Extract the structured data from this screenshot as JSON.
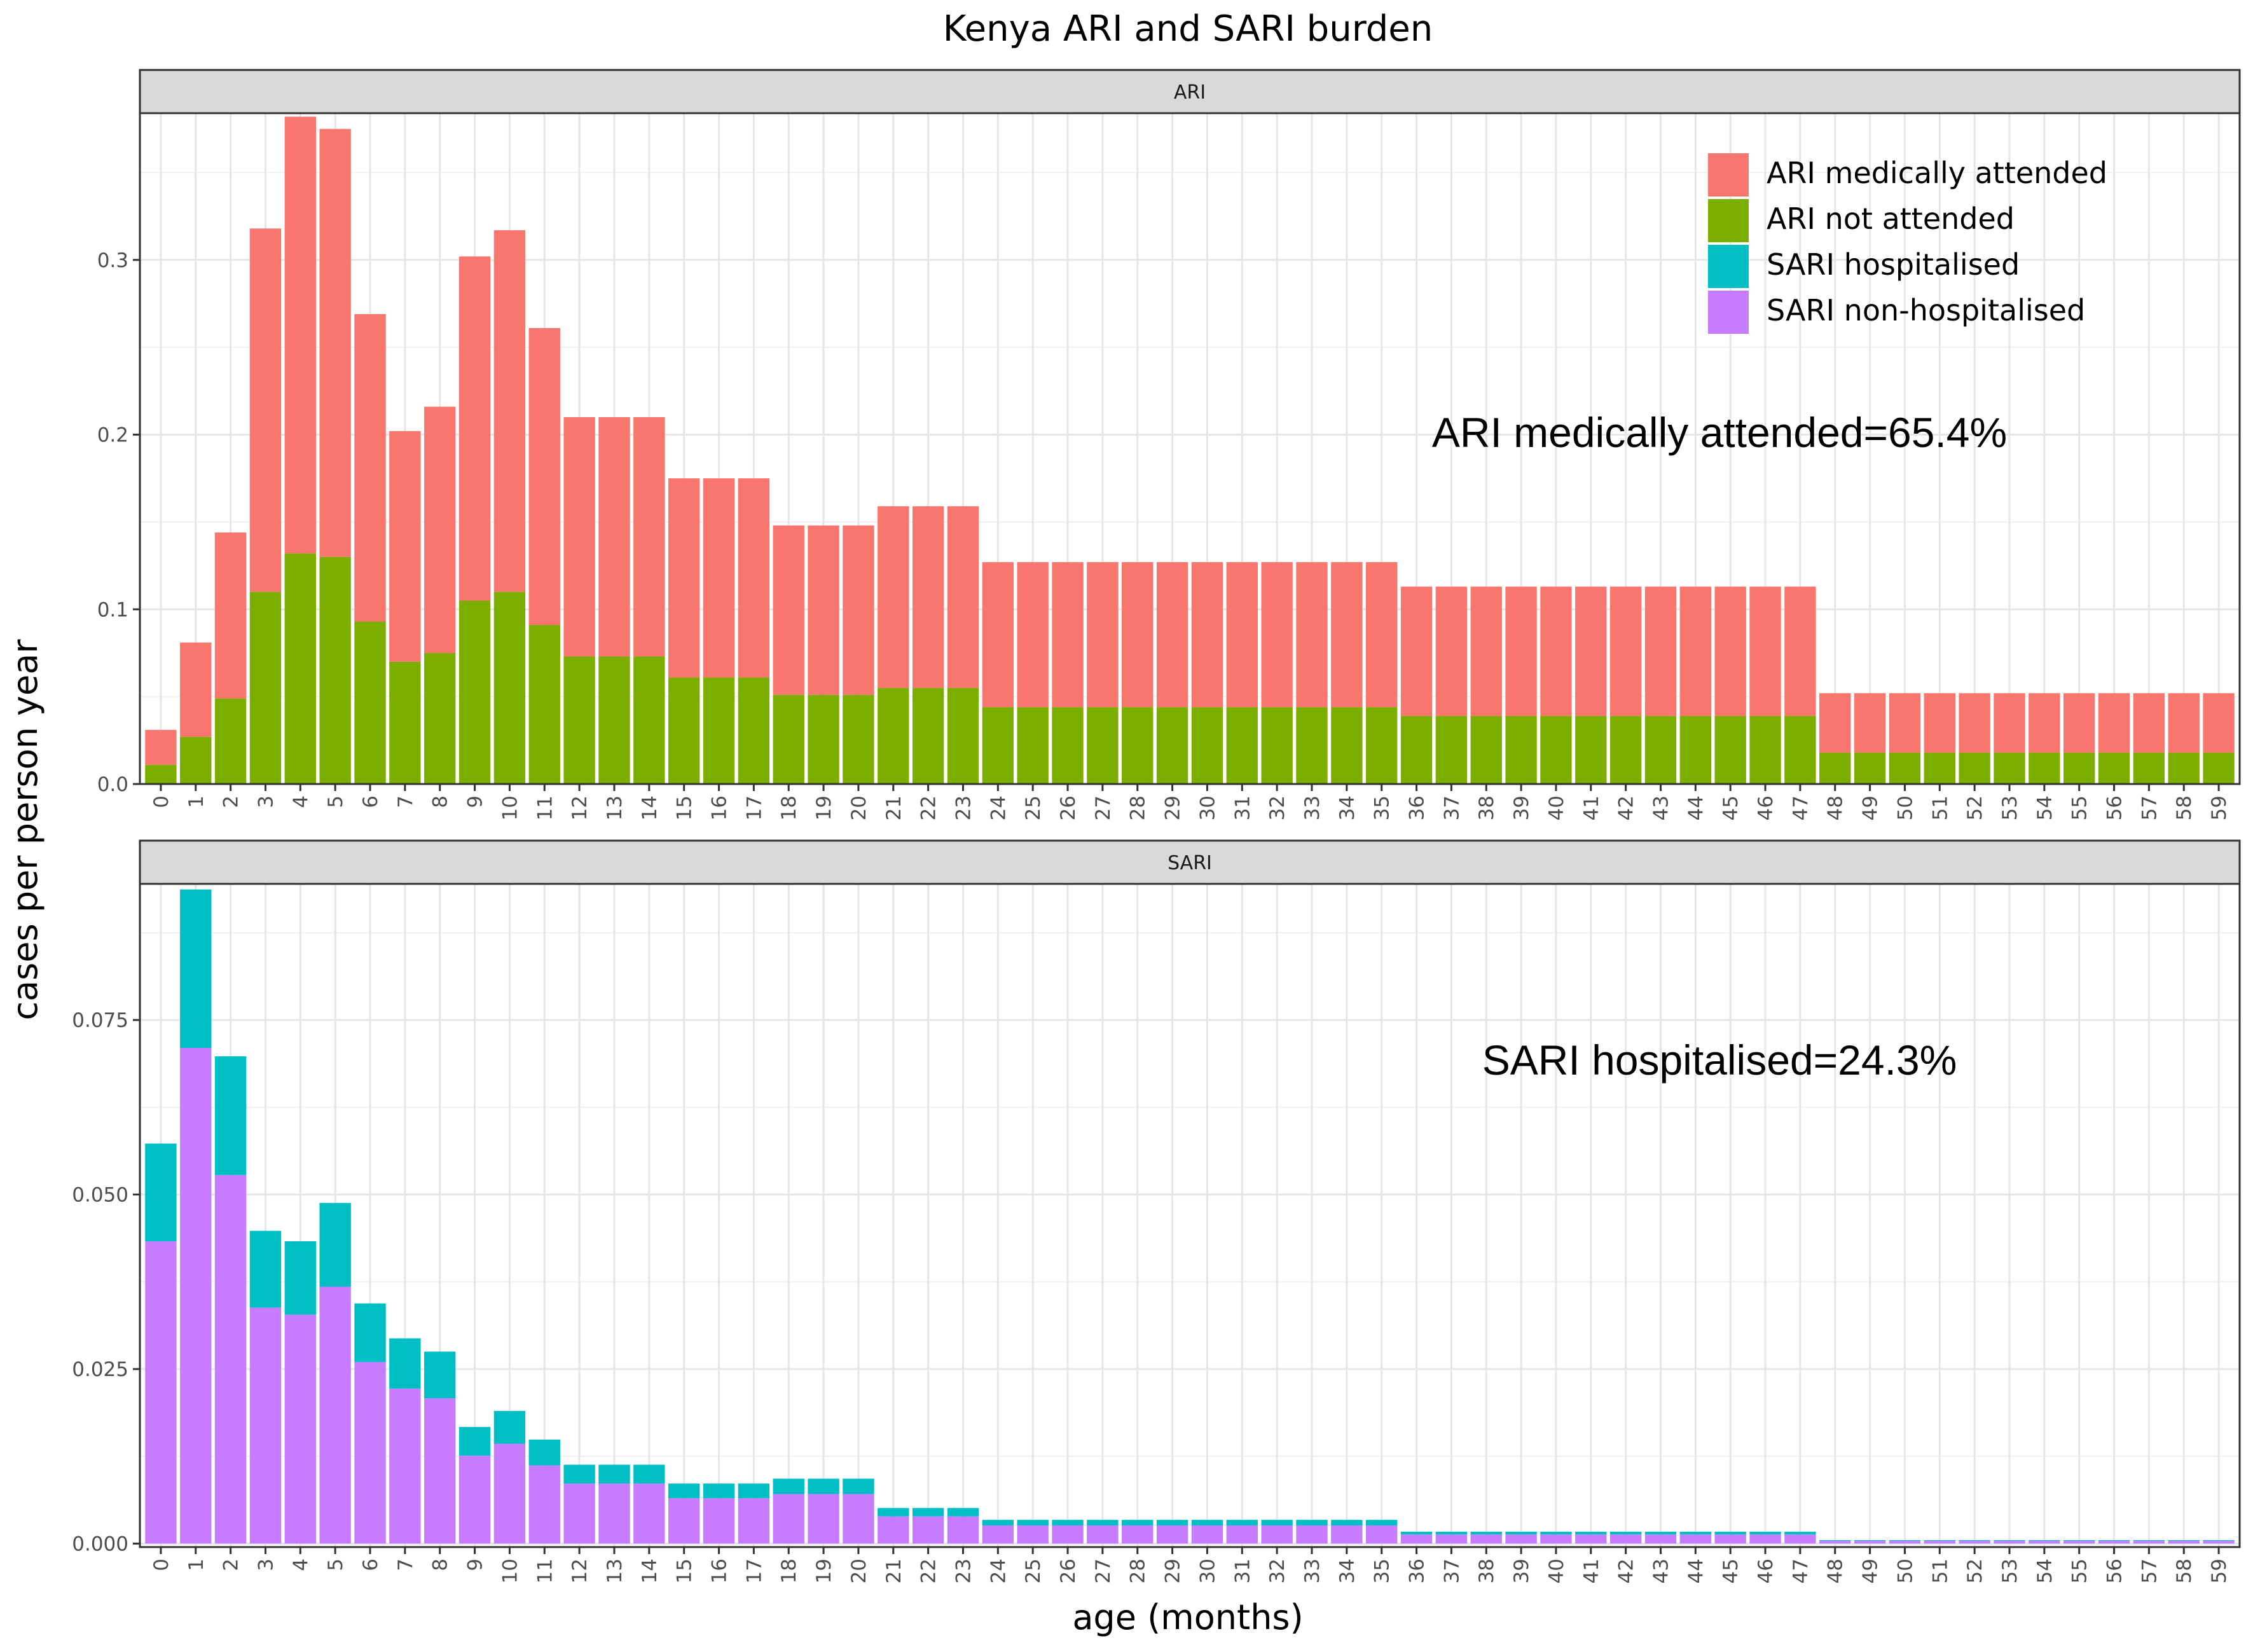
{
  "title": "Kenya ARI and SARI burden",
  "ylabel": "cases per person year",
  "xlabel": "age (months)",
  "legend": {
    "position": "top-right (inside ARI panel)",
    "entries": [
      {
        "label": "ARI medically attended",
        "color": "#F8766D"
      },
      {
        "label": "ARI not attended",
        "color": "#7CAE00"
      },
      {
        "label": "SARI hospitalised",
        "color": "#00BFC4"
      },
      {
        "label": "SARI non-hospitalised",
        "color": "#C77CFF"
      }
    ]
  },
  "chart_data": [
    {
      "type": "bar",
      "stacked": true,
      "panel": "ARI",
      "annotation": "ARI medically attended=65.4%",
      "grid": true,
      "x": [
        0,
        1,
        2,
        3,
        4,
        5,
        6,
        7,
        8,
        9,
        10,
        11,
        12,
        13,
        14,
        15,
        16,
        17,
        18,
        19,
        20,
        21,
        22,
        23,
        24,
        25,
        26,
        27,
        28,
        29,
        30,
        31,
        32,
        33,
        34,
        35,
        36,
        37,
        38,
        39,
        40,
        41,
        42,
        43,
        44,
        45,
        46,
        47,
        48,
        49,
        50,
        51,
        52,
        53,
        54,
        55,
        56,
        57,
        58,
        59
      ],
      "ylim": [
        0,
        0.384
      ],
      "yticks": [
        0.0,
        0.1,
        0.2,
        0.3
      ],
      "ytick_labels": [
        "0.0",
        "0.1",
        "0.2",
        "0.3"
      ],
      "series": [
        {
          "name": "ARI not attended",
          "color": "#7CAE00",
          "values": [
            0.011,
            0.027,
            0.049,
            0.11,
            0.132,
            0.13,
            0.093,
            0.07,
            0.075,
            0.105,
            0.11,
            0.091,
            0.073,
            0.073,
            0.073,
            0.061,
            0.061,
            0.061,
            0.051,
            0.051,
            0.051,
            0.055,
            0.055,
            0.055,
            0.044,
            0.044,
            0.044,
            0.044,
            0.044,
            0.044,
            0.044,
            0.044,
            0.044,
            0.044,
            0.044,
            0.044,
            0.039,
            0.039,
            0.039,
            0.039,
            0.039,
            0.039,
            0.039,
            0.039,
            0.039,
            0.039,
            0.039,
            0.039,
            0.018,
            0.018,
            0.018,
            0.018,
            0.018,
            0.018,
            0.018,
            0.018,
            0.018,
            0.018,
            0.018,
            0.018
          ]
        },
        {
          "name": "ARI medically attended",
          "color": "#F8766D",
          "values": [
            0.02,
            0.054,
            0.095,
            0.208,
            0.25,
            0.245,
            0.176,
            0.132,
            0.141,
            0.197,
            0.207,
            0.17,
            0.137,
            0.137,
            0.137,
            0.114,
            0.114,
            0.114,
            0.097,
            0.097,
            0.097,
            0.104,
            0.104,
            0.104,
            0.083,
            0.083,
            0.083,
            0.083,
            0.083,
            0.083,
            0.083,
            0.083,
            0.083,
            0.083,
            0.083,
            0.083,
            0.074,
            0.074,
            0.074,
            0.074,
            0.074,
            0.074,
            0.074,
            0.074,
            0.074,
            0.074,
            0.074,
            0.074,
            0.034,
            0.034,
            0.034,
            0.034,
            0.034,
            0.034,
            0.034,
            0.034,
            0.034,
            0.034,
            0.034,
            0.034
          ]
        }
      ]
    },
    {
      "type": "bar",
      "stacked": true,
      "panel": "SARI",
      "annotation": "SARI hospitalised=24.3%",
      "grid": true,
      "x": [
        0,
        1,
        2,
        3,
        4,
        5,
        6,
        7,
        8,
        9,
        10,
        11,
        12,
        13,
        14,
        15,
        16,
        17,
        18,
        19,
        20,
        21,
        22,
        23,
        24,
        25,
        26,
        27,
        28,
        29,
        30,
        31,
        32,
        33,
        34,
        35,
        36,
        37,
        38,
        39,
        40,
        41,
        42,
        43,
        44,
        45,
        46,
        47,
        48,
        49,
        50,
        51,
        52,
        53,
        54,
        55,
        56,
        57,
        58,
        59
      ],
      "ylim": [
        -0.0005,
        0.0945
      ],
      "yticks": [
        0.0,
        0.025,
        0.05,
        0.075
      ],
      "ytick_labels": [
        "0.000",
        "0.025",
        "0.050",
        "0.075"
      ],
      "series": [
        {
          "name": "SARI non-hospitalised",
          "color": "#C77CFF",
          "values": [
            0.0433,
            0.071,
            0.0528,
            0.0338,
            0.0328,
            0.0368,
            0.026,
            0.0222,
            0.0208,
            0.0126,
            0.0143,
            0.0112,
            0.0086,
            0.0086,
            0.0086,
            0.0065,
            0.0065,
            0.0065,
            0.0071,
            0.0071,
            0.0071,
            0.0039,
            0.0039,
            0.0039,
            0.0026,
            0.0026,
            0.0026,
            0.0026,
            0.0026,
            0.0026,
            0.0026,
            0.0026,
            0.0026,
            0.0026,
            0.0026,
            0.0026,
            0.0013,
            0.0013,
            0.0013,
            0.0013,
            0.0013,
            0.0013,
            0.0013,
            0.0013,
            0.0013,
            0.0013,
            0.0013,
            0.0013,
            0.0004,
            0.0004,
            0.0004,
            0.0004,
            0.0004,
            0.0004,
            0.0004,
            0.0004,
            0.0004,
            0.0004,
            0.0004,
            0.0004
          ]
        },
        {
          "name": "SARI hospitalised",
          "color": "#00BFC4",
          "values": [
            0.014,
            0.0227,
            0.017,
            0.011,
            0.0105,
            0.012,
            0.0084,
            0.0072,
            0.0067,
            0.0041,
            0.0047,
            0.0037,
            0.0027,
            0.0027,
            0.0027,
            0.0021,
            0.0021,
            0.0021,
            0.0022,
            0.0022,
            0.0022,
            0.0012,
            0.0012,
            0.0012,
            0.0008,
            0.0008,
            0.0008,
            0.0008,
            0.0008,
            0.0008,
            0.0008,
            0.0008,
            0.0008,
            0.0008,
            0.0008,
            0.0008,
            0.0004,
            0.0004,
            0.0004,
            0.0004,
            0.0004,
            0.0004,
            0.0004,
            0.0004,
            0.0004,
            0.0004,
            0.0004,
            0.0004,
            0.0001,
            0.0001,
            0.0001,
            0.0001,
            0.0001,
            0.0001,
            0.0001,
            0.0001,
            0.0001,
            0.0001,
            0.0001,
            0.0001
          ]
        }
      ]
    }
  ]
}
